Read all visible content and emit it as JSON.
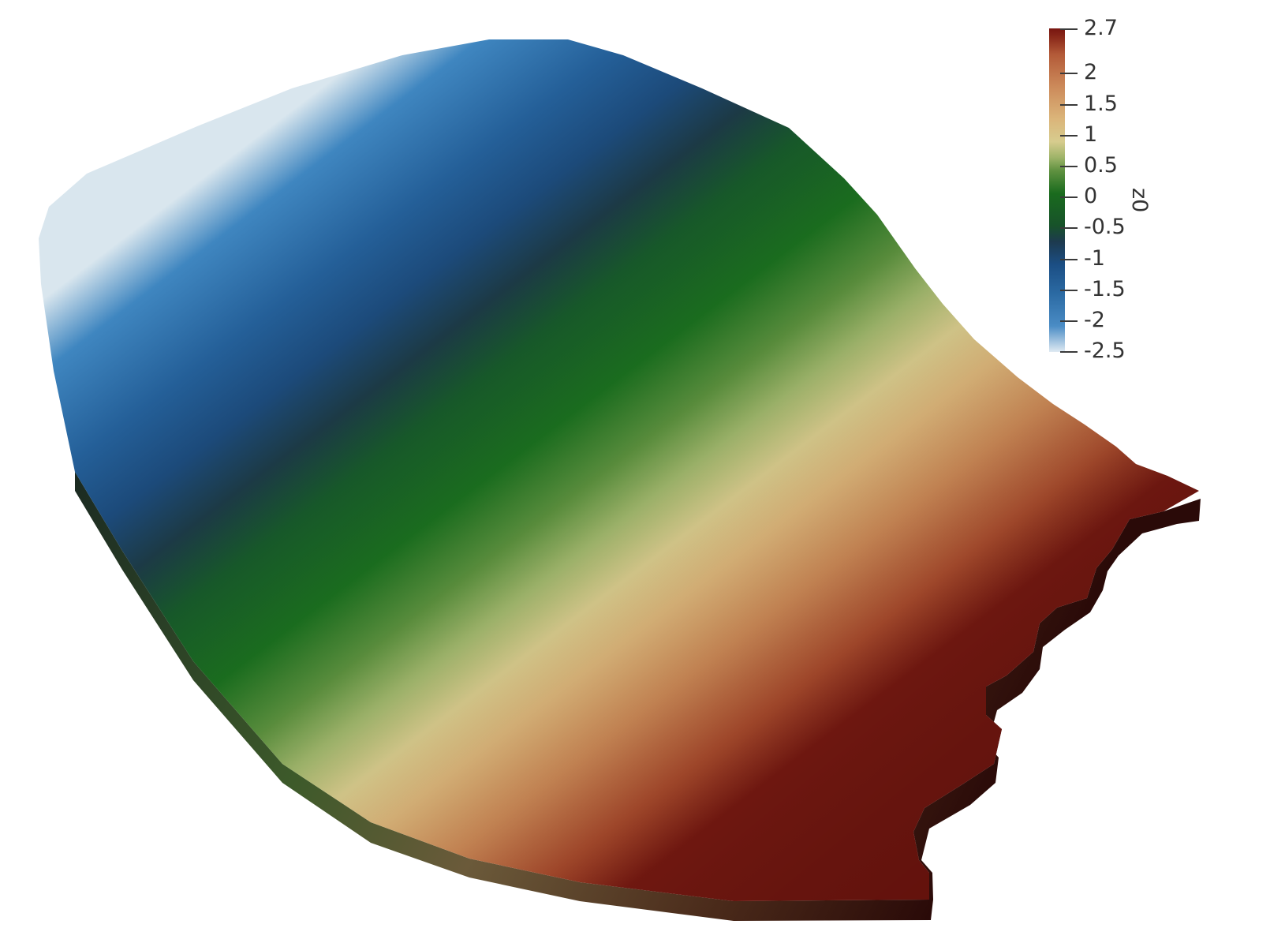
{
  "colorbar": {
    "title": "z0",
    "range": [
      -2.5,
      2.7
    ],
    "ticks": [
      "2.7",
      "2",
      "1.5",
      "1",
      "0.5",
      "0",
      "-0.5",
      "-1",
      "-1.5",
      "-2",
      "-2.5"
    ],
    "colormap": [
      "#dfeaf2",
      "#2b6aa3",
      "#1d3a4f",
      "#1a6b1e",
      "#9db368",
      "#d7cc8e",
      "#cc8a5a",
      "#8c2b1b",
      "#771510"
    ]
  }
}
